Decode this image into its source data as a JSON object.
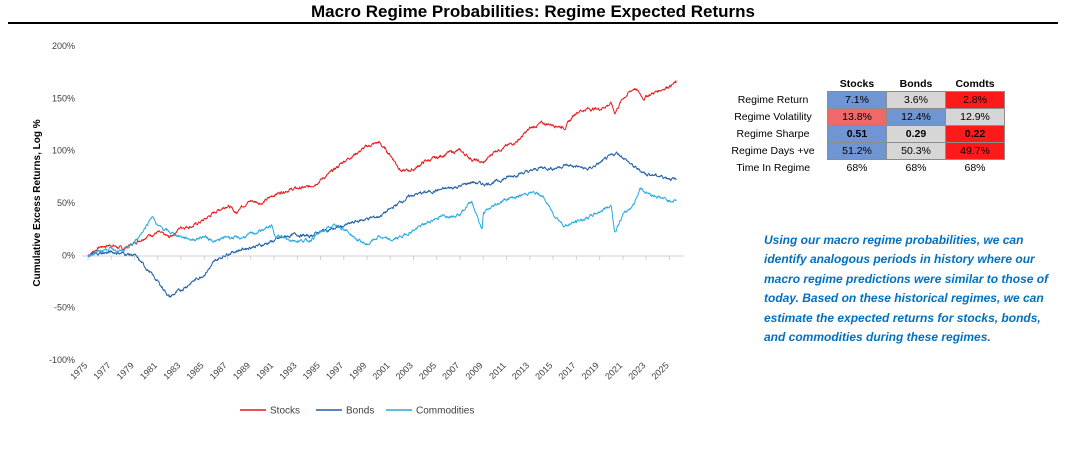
{
  "title": "Macro Regime Probabilities: Regime Expected Returns",
  "commentary": "Using our macro regime probabilities, we can identify analogous periods in history where our macro regime predictions were similar to those of today. Based on these historical regimes, we can estimate the expected returns for stocks, bonds, and commodities during these regimes.",
  "table": {
    "columns": [
      "Stocks",
      "Bonds",
      "Comdts"
    ],
    "rows": [
      {
        "label": "Regime Return",
        "cells": [
          "7.1%",
          "3.6%",
          "2.8%"
        ],
        "colors": [
          "#6f95d2",
          "#d6d6d6",
          "#ff1a1a"
        ],
        "bold": false,
        "plain": false
      },
      {
        "label": "Regime Volatility",
        "cells": [
          "13.8%",
          "12.4%",
          "12.9%"
        ],
        "colors": [
          "#f0686a",
          "#6f95d2",
          "#d6d6d6"
        ],
        "bold": false,
        "plain": false
      },
      {
        "label": "Regime Sharpe",
        "cells": [
          "0.51",
          "0.29",
          "0.22"
        ],
        "colors": [
          "#6f95d2",
          "#d6d6d6",
          "#ff1a1a"
        ],
        "bold": true,
        "plain": false
      },
      {
        "label": "Regime Days +ve",
        "cells": [
          "51.2%",
          "50.3%",
          "49.7%"
        ],
        "colors": [
          "#6f95d2",
          "#d6d6d6",
          "#ff1a1a"
        ],
        "bold": false,
        "plain": false
      },
      {
        "label": "Time In Regime",
        "cells": [
          "68%",
          "68%",
          "68%"
        ],
        "colors": [
          "#ffffff",
          "#ffffff",
          "#ffffff"
        ],
        "bold": false,
        "plain": true
      }
    ]
  },
  "chart_data": {
    "type": "line",
    "title": "",
    "xlabel": "",
    "ylabel": "Cumulative Excess Returns, Log %",
    "ylim": [
      -100,
      200
    ],
    "yticks": [
      -100,
      -50,
      0,
      50,
      100,
      150,
      200
    ],
    "ytick_labels": [
      "-100%",
      "-50%",
      "0%",
      "50%",
      "100%",
      "150%",
      "200%"
    ],
    "xlim": [
      1975,
      2026
    ],
    "xticks": [
      1975,
      1977,
      1979,
      1981,
      1983,
      1985,
      1987,
      1989,
      1991,
      1993,
      1995,
      1997,
      1999,
      2001,
      2003,
      2005,
      2007,
      2009,
      2011,
      2013,
      2015,
      2017,
      2019,
      2021,
      2023,
      2025
    ],
    "grid": false,
    "legend_position": "bottom",
    "series": [
      {
        "name": "Stocks",
        "color": "#e31a1c",
        "x": [
          1975,
          1976,
          1977,
          1978,
          1979,
          1980,
          1981,
          1982,
          1983,
          1984,
          1985,
          1986,
          1987,
          1987.8,
          1988,
          1989,
          1990,
          1991,
          1992,
          1993,
          1994,
          1995,
          1996,
          1997,
          1998,
          1999,
          2000,
          2001,
          2002,
          2003,
          2004,
          2005,
          2006,
          2007,
          2008,
          2009,
          2010,
          2011,
          2012,
          2013,
          2014,
          2015,
          2016,
          2017,
          2018,
          2019,
          2020,
          2020.3,
          2021,
          2022,
          2022.8,
          2023,
          2024,
          2025,
          2025.6
        ],
        "y": [
          0,
          8,
          10,
          6,
          12,
          18,
          22,
          17,
          27,
          28,
          34,
          42,
          48,
          40,
          46,
          52,
          50,
          58,
          62,
          64,
          65,
          72,
          80,
          90,
          97,
          104,
          108,
          96,
          80,
          82,
          90,
          93,
          98,
          100,
          92,
          88,
          100,
          104,
          110,
          121,
          126,
          125,
          122,
          137,
          140,
          140,
          145,
          136,
          150,
          160,
          150,
          152,
          157,
          162,
          165
        ]
      },
      {
        "name": "Bonds",
        "color": "#1f5fa8",
        "x": [
          1975,
          1976,
          1977,
          1978,
          1979,
          1980,
          1981,
          1981.7,
          1982,
          1983,
          1984,
          1985,
          1986,
          1987,
          1988,
          1989,
          1990,
          1991,
          1992,
          1993,
          1994,
          1995,
          1996,
          1997,
          1998,
          1999,
          2000,
          2001,
          2002,
          2003,
          2004,
          2005,
          2006,
          2007,
          2008,
          2009,
          2010,
          2011,
          2012,
          2013,
          2014,
          2015,
          2016,
          2017,
          2018,
          2019,
          2020,
          2020.5,
          2021,
          2022,
          2023,
          2024,
          2025,
          2025.6
        ],
        "y": [
          0,
          2,
          3,
          2,
          0,
          -12,
          -25,
          -35,
          -40,
          -33,
          -25,
          -18,
          -5,
          2,
          5,
          8,
          10,
          14,
          18,
          20,
          18,
          23,
          25,
          28,
          32,
          35,
          37,
          44,
          52,
          58,
          60,
          62,
          64,
          66,
          70,
          68,
          70,
          74,
          78,
          80,
          84,
          83,
          86,
          85,
          82,
          88,
          95,
          98,
          94,
          84,
          78,
          76,
          74,
          72
        ]
      },
      {
        "name": "Commodities",
        "color": "#28a8e0",
        "x": [
          1975,
          1976,
          1977,
          1978,
          1979,
          1980,
          1980.5,
          1981,
          1982,
          1983,
          1984,
          1985,
          1986,
          1987,
          1988,
          1989,
          1990,
          1990.8,
          1991,
          1992,
          1993,
          1994,
          1995,
          1996,
          1997,
          1998,
          1999,
          2000,
          2001,
          2002,
          2003,
          2004,
          2005,
          2006,
          2007,
          2008,
          2008.9,
          2009,
          2010,
          2011,
          2012,
          2013,
          2014,
          2015,
          2016,
          2017,
          2018,
          2019,
          2020,
          2020.3,
          2021,
          2022,
          2022.5,
          2023,
          2024,
          2025,
          2025.6
        ],
        "y": [
          0,
          4,
          7,
          3,
          12,
          28,
          38,
          28,
          22,
          18,
          15,
          18,
          13,
          18,
          16,
          20,
          24,
          28,
          20,
          16,
          14,
          14,
          22,
          28,
          26,
          16,
          10,
          18,
          14,
          18,
          24,
          30,
          36,
          38,
          40,
          52,
          24,
          40,
          48,
          54,
          56,
          60,
          58,
          40,
          28,
          32,
          36,
          42,
          48,
          22,
          38,
          50,
          65,
          60,
          56,
          52,
          53
        ]
      }
    ]
  }
}
